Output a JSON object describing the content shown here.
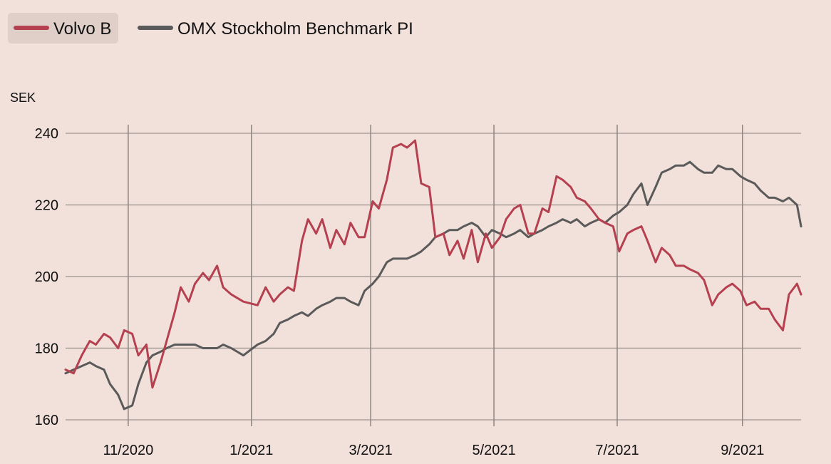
{
  "chart_data": {
    "type": "line",
    "ylabel": "SEK",
    "ylim": [
      160,
      240
    ],
    "y_ticks": [
      "160",
      "180",
      "200",
      "220",
      "240"
    ],
    "x_tick_labels": [
      "11/2020",
      "1/2021",
      "3/2021",
      "5/2021",
      "7/2021",
      "9/2021"
    ],
    "xlim": [
      "2020-10-01",
      "2021-09-30"
    ],
    "grid": true,
    "legend_position": "top-left",
    "series": [
      {
        "name": "Volvo B",
        "color": "#b5404f",
        "x": [
          "2020-10-01",
          "2020-10-05",
          "2020-10-09",
          "2020-10-13",
          "2020-10-16",
          "2020-10-20",
          "2020-10-23",
          "2020-10-27",
          "2020-10-30",
          "2020-11-03",
          "2020-11-06",
          "2020-11-10",
          "2020-11-13",
          "2020-11-17",
          "2020-11-20",
          "2020-11-24",
          "2020-11-27",
          "2020-12-01",
          "2020-12-04",
          "2020-12-08",
          "2020-12-11",
          "2020-12-15",
          "2020-12-18",
          "2020-12-22",
          "2020-12-28",
          "2021-01-04",
          "2021-01-08",
          "2021-01-12",
          "2021-01-15",
          "2021-01-19",
          "2021-01-22",
          "2021-01-26",
          "2021-01-29",
          "2021-02-02",
          "2021-02-05",
          "2021-02-09",
          "2021-02-12",
          "2021-02-16",
          "2021-02-19",
          "2021-02-23",
          "2021-02-26",
          "2021-03-02",
          "2021-03-05",
          "2021-03-09",
          "2021-03-12",
          "2021-03-16",
          "2021-03-19",
          "2021-03-23",
          "2021-03-26",
          "2021-03-30",
          "2021-04-02",
          "2021-04-06",
          "2021-04-09",
          "2021-04-13",
          "2021-04-16",
          "2021-04-20",
          "2021-04-23",
          "2021-04-27",
          "2021-04-30",
          "2021-05-04",
          "2021-05-07",
          "2021-05-11",
          "2021-05-14",
          "2021-05-18",
          "2021-05-21",
          "2021-05-25",
          "2021-05-28",
          "2021-06-01",
          "2021-06-04",
          "2021-06-08",
          "2021-06-11",
          "2021-06-15",
          "2021-06-18",
          "2021-06-22",
          "2021-06-25",
          "2021-06-29",
          "2021-07-02",
          "2021-07-06",
          "2021-07-09",
          "2021-07-13",
          "2021-07-16",
          "2021-07-20",
          "2021-07-23",
          "2021-07-27",
          "2021-07-30",
          "2021-08-03",
          "2021-08-06",
          "2021-08-10",
          "2021-08-13",
          "2021-08-17",
          "2021-08-20",
          "2021-08-24",
          "2021-08-27",
          "2021-08-31",
          "2021-09-03",
          "2021-09-07",
          "2021-09-10",
          "2021-09-14",
          "2021-09-17",
          "2021-09-21",
          "2021-09-24",
          "2021-09-28",
          "2021-09-30"
        ],
        "values": [
          174,
          173,
          178,
          182,
          181,
          184,
          183,
          180,
          185,
          184,
          178,
          181,
          169,
          176,
          182,
          190,
          197,
          193,
          198,
          201,
          199,
          203,
          197,
          195,
          193,
          192,
          197,
          193,
          195,
          197,
          196,
          210,
          216,
          212,
          216,
          208,
          213,
          209,
          215,
          211,
          211,
          221,
          219,
          227,
          236,
          237,
          236,
          238,
          226,
          225,
          211,
          212,
          206,
          210,
          205,
          213,
          204,
          212,
          208,
          211,
          216,
          219,
          220,
          212,
          212,
          219,
          218,
          228,
          227,
          225,
          222,
          221,
          219,
          216,
          215,
          214,
          207,
          212,
          213,
          214,
          210,
          204,
          208,
          206,
          203,
          203,
          202,
          201,
          199,
          192,
          195,
          197,
          198,
          196,
          192,
          193,
          191,
          191,
          188,
          185,
          195,
          198,
          195
        ]
      },
      {
        "name": "OMX Stockholm Benchmark PI",
        "color": "#5a5a5a",
        "x": [
          "2020-10-01",
          "2020-10-05",
          "2020-10-09",
          "2020-10-13",
          "2020-10-16",
          "2020-10-20",
          "2020-10-23",
          "2020-10-27",
          "2020-10-30",
          "2020-11-03",
          "2020-11-06",
          "2020-11-10",
          "2020-11-13",
          "2020-11-17",
          "2020-11-20",
          "2020-11-24",
          "2020-11-27",
          "2020-12-01",
          "2020-12-04",
          "2020-12-08",
          "2020-12-11",
          "2020-12-15",
          "2020-12-18",
          "2020-12-22",
          "2020-12-28",
          "2021-01-04",
          "2021-01-08",
          "2021-01-12",
          "2021-01-15",
          "2021-01-19",
          "2021-01-22",
          "2021-01-26",
          "2021-01-29",
          "2021-02-02",
          "2021-02-05",
          "2021-02-09",
          "2021-02-12",
          "2021-02-16",
          "2021-02-19",
          "2021-02-23",
          "2021-02-26",
          "2021-03-02",
          "2021-03-05",
          "2021-03-09",
          "2021-03-12",
          "2021-03-16",
          "2021-03-19",
          "2021-03-23",
          "2021-03-26",
          "2021-03-30",
          "2021-04-02",
          "2021-04-06",
          "2021-04-09",
          "2021-04-13",
          "2021-04-16",
          "2021-04-20",
          "2021-04-23",
          "2021-04-27",
          "2021-04-30",
          "2021-05-04",
          "2021-05-07",
          "2021-05-11",
          "2021-05-14",
          "2021-05-18",
          "2021-05-21",
          "2021-05-25",
          "2021-05-28",
          "2021-06-01",
          "2021-06-04",
          "2021-06-08",
          "2021-06-11",
          "2021-06-15",
          "2021-06-18",
          "2021-06-22",
          "2021-06-25",
          "2021-06-29",
          "2021-07-02",
          "2021-07-06",
          "2021-07-09",
          "2021-07-13",
          "2021-07-16",
          "2021-07-20",
          "2021-07-23",
          "2021-07-27",
          "2021-07-30",
          "2021-08-03",
          "2021-08-06",
          "2021-08-10",
          "2021-08-13",
          "2021-08-17",
          "2021-08-20",
          "2021-08-24",
          "2021-08-27",
          "2021-08-31",
          "2021-09-03",
          "2021-09-07",
          "2021-09-10",
          "2021-09-14",
          "2021-09-17",
          "2021-09-21",
          "2021-09-24",
          "2021-09-28",
          "2021-09-30"
        ],
        "values": [
          173,
          174,
          175,
          176,
          175,
          174,
          170,
          167,
          163,
          164,
          170,
          176,
          178,
          179,
          180,
          181,
          181,
          181,
          181,
          180,
          180,
          180,
          181,
          180,
          178,
          181,
          182,
          184,
          187,
          188,
          189,
          190,
          189,
          191,
          192,
          193,
          194,
          194,
          193,
          192,
          196,
          198,
          200,
          204,
          205,
          205,
          205,
          206,
          207,
          209,
          211,
          212,
          213,
          213,
          214,
          215,
          214,
          211,
          213,
          212,
          211,
          212,
          213,
          211,
          212,
          213,
          214,
          215,
          216,
          215,
          216,
          214,
          215,
          216,
          215,
          217,
          218,
          220,
          223,
          226,
          220,
          225,
          229,
          230,
          231,
          231,
          232,
          230,
          229,
          229,
          231,
          230,
          230,
          228,
          227,
          226,
          224,
          222,
          222,
          221,
          222,
          220,
          214
        ]
      }
    ]
  }
}
